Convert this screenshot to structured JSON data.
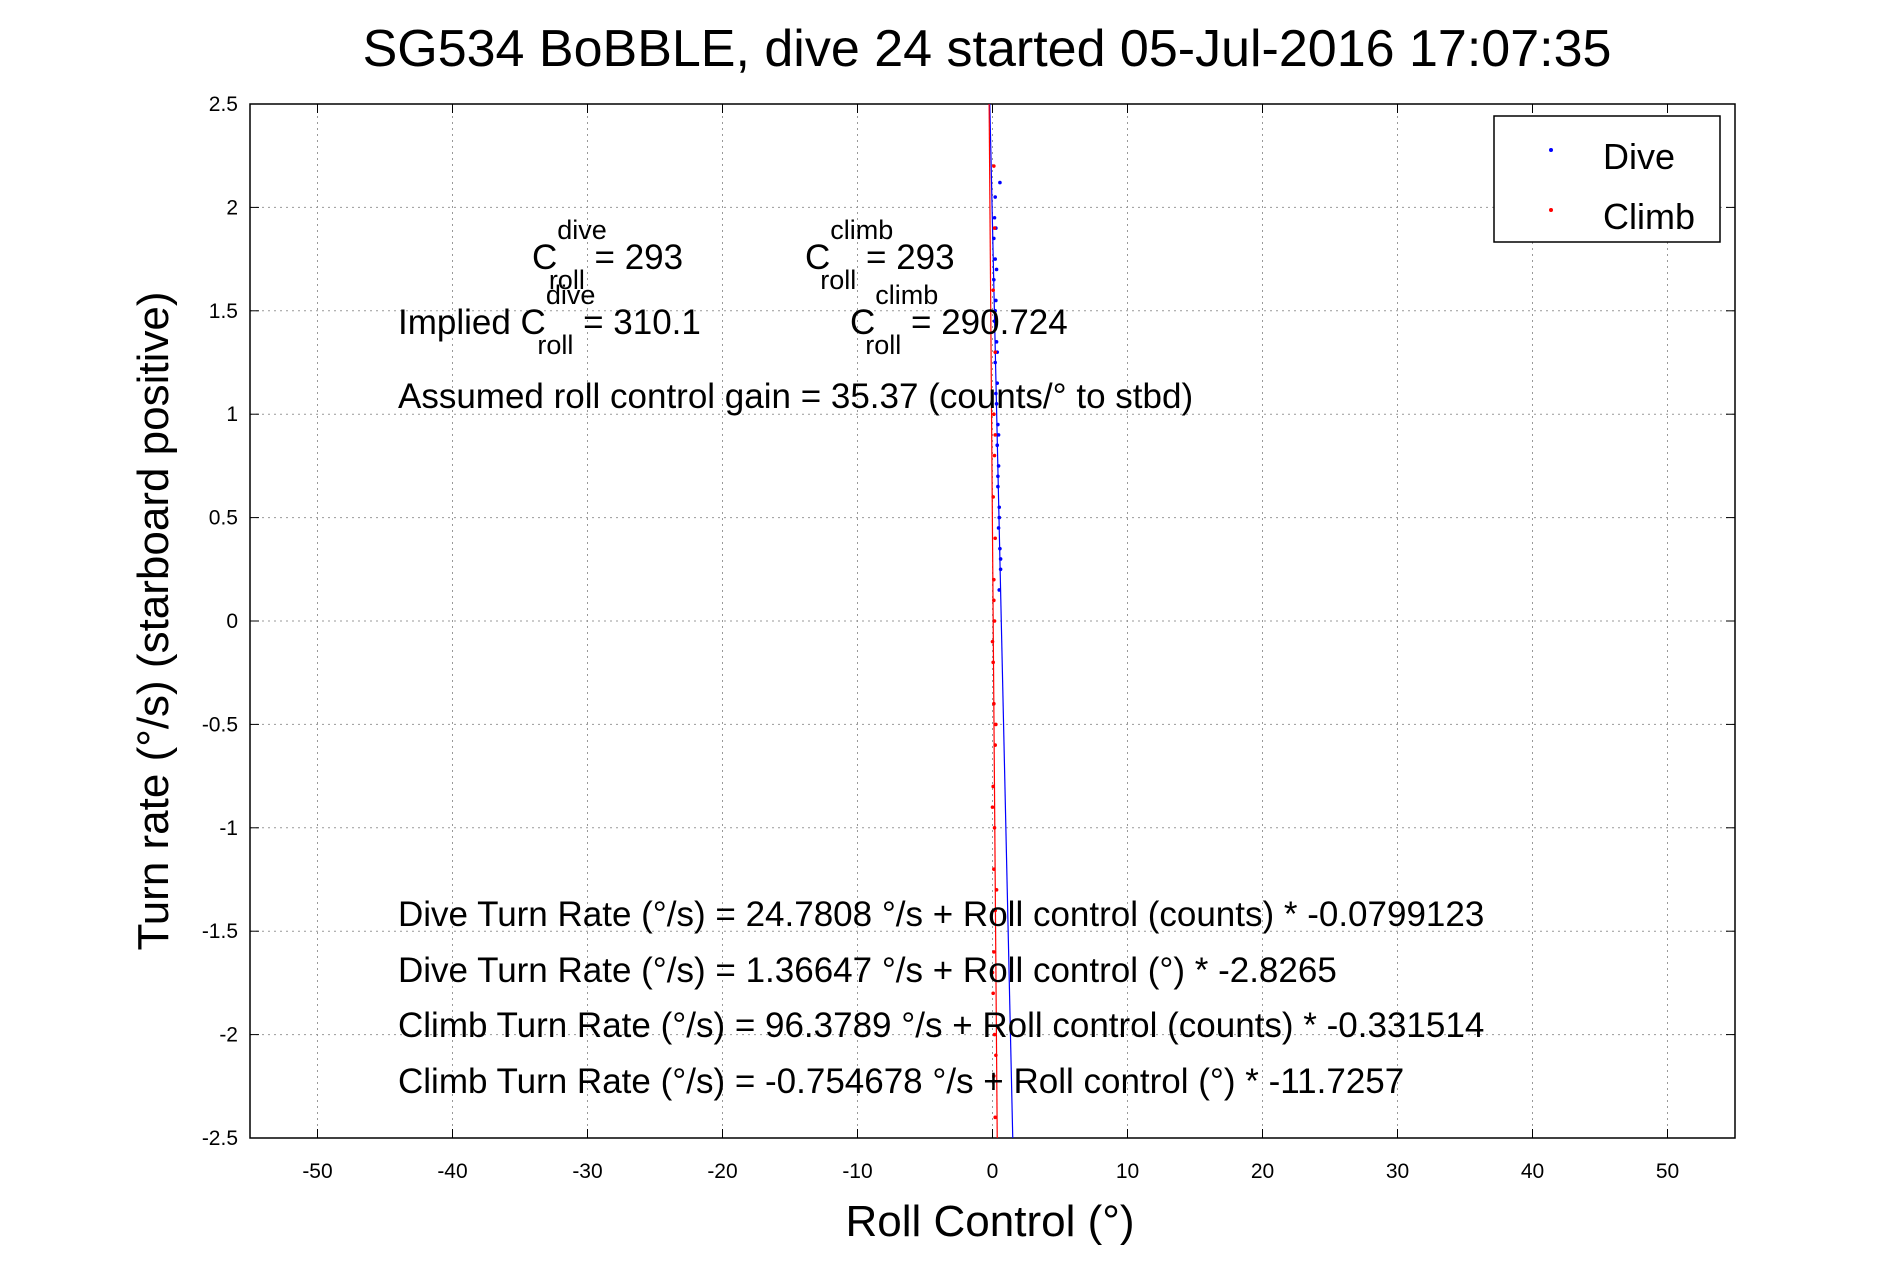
{
  "chart_data": {
    "type": "scatter",
    "title": "SG534 BoBBLE, dive 24 started 05-Jul-2016 17:07:35",
    "xlabel": "Roll Control (°)",
    "ylabel": "Turn rate (°/s) (starboard positive)",
    "xlim": [
      -55,
      55
    ],
    "ylim": [
      -2.5,
      2.5
    ],
    "xticks": [
      -50,
      -40,
      -30,
      -20,
      -10,
      0,
      10,
      20,
      30,
      40,
      50
    ],
    "yticks": [
      -2.5,
      -2,
      -1.5,
      -1,
      -0.5,
      0,
      0.5,
      1,
      1.5,
      2,
      2.5
    ],
    "xtick_labels": [
      "-50",
      "-40",
      "-30",
      "-20",
      "-10",
      "0",
      "10",
      "20",
      "30",
      "40",
      "50"
    ],
    "ytick_labels": [
      "-2.5",
      "-2",
      "-1.5",
      "-1",
      "-0.5",
      "0",
      "0.5",
      "1",
      "1.5",
      "2",
      "2.5"
    ],
    "grid": true,
    "legend_position": "top-right",
    "series": [
      {
        "name": "Dive",
        "color": "#0000ff",
        "points": [
          [
            0.2,
            2.05
          ],
          [
            0.15,
            1.95
          ],
          [
            0.1,
            1.85
          ],
          [
            0.2,
            1.75
          ],
          [
            0.1,
            1.65
          ],
          [
            0.25,
            1.55
          ],
          [
            0.15,
            1.45
          ],
          [
            0.3,
            1.35
          ],
          [
            0.2,
            1.25
          ],
          [
            0.35,
            1.15
          ],
          [
            0.3,
            1.05
          ],
          [
            0.4,
            0.95
          ],
          [
            0.35,
            0.85
          ],
          [
            0.45,
            0.75
          ],
          [
            0.4,
            0.65
          ],
          [
            0.5,
            0.55
          ],
          [
            0.45,
            0.45
          ],
          [
            0.55,
            0.35
          ],
          [
            0.6,
            0.25
          ],
          [
            0.5,
            0.15
          ],
          [
            0.55,
            2.12
          ],
          [
            0.25,
            1.9
          ],
          [
            0.3,
            1.7
          ],
          [
            0.2,
            1.5
          ],
          [
            0.35,
            1.3
          ],
          [
            0.25,
            1.1
          ],
          [
            0.45,
            0.9
          ],
          [
            0.4,
            0.7
          ],
          [
            0.5,
            0.5
          ],
          [
            0.6,
            0.3
          ]
        ],
        "fit": {
          "x": [
            -0.2,
            1.5
          ],
          "y": [
            2.5,
            -2.5
          ]
        }
      },
      {
        "name": "Climb",
        "color": "#ff0000",
        "points": [
          [
            0.1,
            2.2
          ],
          [
            0.15,
            1.9
          ],
          [
            0.05,
            1.6
          ],
          [
            0.2,
            1.3
          ],
          [
            0.1,
            1.0
          ],
          [
            0.15,
            0.8
          ],
          [
            0.05,
            0.6
          ],
          [
            0.2,
            0.4
          ],
          [
            0.1,
            0.2
          ],
          [
            0.15,
            0.0
          ],
          [
            0.05,
            -0.2
          ],
          [
            0.1,
            -0.4
          ],
          [
            0.2,
            -0.6
          ],
          [
            0.05,
            -0.8
          ],
          [
            0.15,
            -1.0
          ],
          [
            0.1,
            -1.2
          ],
          [
            0.2,
            -1.4
          ],
          [
            0.1,
            -1.6
          ],
          [
            0.05,
            -1.8
          ],
          [
            0.15,
            -2.0
          ],
          [
            0.1,
            -2.2
          ],
          [
            0.2,
            -2.4
          ],
          [
            0.0,
            -0.1
          ],
          [
            0.25,
            -0.5
          ],
          [
            0.0,
            -0.9
          ],
          [
            0.3,
            -1.3
          ],
          [
            0.0,
            -1.7
          ],
          [
            0.25,
            -2.1
          ],
          [
            0.1,
            0.1
          ],
          [
            0.2,
            0.9
          ]
        ],
        "fit": {
          "x": [
            -0.25,
            0.35
          ],
          "y": [
            2.5,
            -2.5
          ]
        }
      }
    ],
    "annotations": {
      "c_roll_dive": {
        "main": "C",
        "sup": "dive",
        "sub": "roll",
        "value": " = 293"
      },
      "c_roll_climb": {
        "main": "C",
        "sup": "climb",
        "sub": "roll",
        "value": " = 293"
      },
      "implied_prefix": "Implied C",
      "implied_dive": {
        "sup": "dive",
        "sub": "roll",
        "value": " = 310.1"
      },
      "implied_climb": {
        "main": "C",
        "sup": "climb",
        "sub": "roll",
        "value": " = 290.724"
      },
      "gain": "Assumed roll control gain = 35.37 (counts/° to stbd)",
      "eq1": "Dive Turn Rate (°/s) = 24.7808 °/s + Roll control (counts) * -0.0799123",
      "eq2": "Dive Turn Rate (°/s) = 1.36647 °/s + Roll control (°) * -2.8265",
      "eq3": "Climb Turn Rate (°/s) = 96.3789 °/s + Roll control (counts) * -0.331514",
      "eq4": "Climb Turn Rate (°/s) = -0.754678 °/s + Roll control (°) * -11.7257"
    }
  }
}
